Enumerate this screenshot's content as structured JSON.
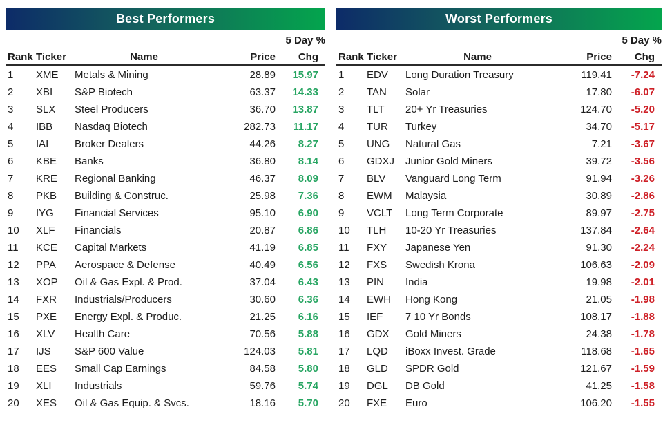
{
  "columns_display": {
    "rank": "Rank",
    "ticker": "Ticker",
    "name": "Name",
    "price": "Price",
    "chg_top": "5 Day %",
    "chg": "Chg"
  },
  "colors": {
    "header_gradient": [
      "#0d2b68",
      "#14635c",
      "#04a54d"
    ],
    "positive": "#27a562",
    "negative": "#ce2027",
    "text": "#1d1d1d",
    "rule": "#2b2b2b"
  },
  "chart_data": [
    {
      "type": "table",
      "title": "Best Performers",
      "columns": [
        "Rank",
        "Ticker",
        "Name",
        "Price",
        "5 Day % Chg"
      ],
      "rows": [
        [
          1,
          "XME",
          "Metals & Mining",
          "28.89",
          "15.97"
        ],
        [
          2,
          "XBI",
          "S&P Biotech",
          "63.37",
          "14.33"
        ],
        [
          3,
          "SLX",
          "Steel Producers",
          "36.70",
          "13.87"
        ],
        [
          4,
          "IBB",
          "Nasdaq Biotech",
          "282.73",
          "11.17"
        ],
        [
          5,
          "IAI",
          "Broker Dealers",
          "44.26",
          "8.27"
        ],
        [
          6,
          "KBE",
          "Banks",
          "36.80",
          "8.14"
        ],
        [
          7,
          "KRE",
          "Regional Banking",
          "46.37",
          "8.09"
        ],
        [
          8,
          "PKB",
          "Building & Construc.",
          "25.98",
          "7.36"
        ],
        [
          9,
          "IYG",
          "Financial Services",
          "95.10",
          "6.90"
        ],
        [
          10,
          "XLF",
          "Financials",
          "20.87",
          "6.86"
        ],
        [
          11,
          "KCE",
          "Capital Markets",
          "41.19",
          "6.85"
        ],
        [
          12,
          "PPA",
          "Aerospace & Defense",
          "40.49",
          "6.56"
        ],
        [
          13,
          "XOP",
          "Oil & Gas Expl. & Prod.",
          "37.04",
          "6.43"
        ],
        [
          14,
          "FXR",
          "Industrials/Producers",
          "30.60",
          "6.36"
        ],
        [
          15,
          "PXE",
          "Energy Expl. & Produc.",
          "21.25",
          "6.16"
        ],
        [
          16,
          "XLV",
          "Health Care",
          "70.56",
          "5.88"
        ],
        [
          17,
          "IJS",
          "S&P 600 Value",
          "124.03",
          "5.81"
        ],
        [
          18,
          "EES",
          "Small Cap Earnings",
          "84.58",
          "5.80"
        ],
        [
          19,
          "XLI",
          "Industrials",
          "59.76",
          "5.74"
        ],
        [
          20,
          "XES",
          "Oil & Gas Equip. & Svcs.",
          "18.16",
          "5.70"
        ]
      ]
    },
    {
      "type": "table",
      "title": "Worst Performers",
      "columns": [
        "Rank",
        "Ticker",
        "Name",
        "Price",
        "5 Day % Chg"
      ],
      "rows": [
        [
          1,
          "EDV",
          "Long Duration Treasury",
          "119.41",
          "-7.24"
        ],
        [
          2,
          "TAN",
          "Solar",
          "17.80",
          "-6.07"
        ],
        [
          3,
          "TLT",
          "20+ Yr Treasuries",
          "124.70",
          "-5.20"
        ],
        [
          4,
          "TUR",
          "Turkey",
          "34.70",
          "-5.17"
        ],
        [
          5,
          "UNG",
          "Natural Gas",
          "7.21",
          "-3.67"
        ],
        [
          6,
          "GDXJ",
          "Junior Gold Miners",
          "39.72",
          "-3.56"
        ],
        [
          7,
          "BLV",
          "Vanguard Long Term",
          "91.94",
          "-3.26"
        ],
        [
          8,
          "EWM",
          "Malaysia",
          "30.89",
          "-2.86"
        ],
        [
          9,
          "VCLT",
          "Long Term Corporate",
          "89.97",
          "-2.75"
        ],
        [
          10,
          "TLH",
          "10-20 Yr Treasuries",
          "137.84",
          "-2.64"
        ],
        [
          11,
          "FXY",
          "Japanese Yen",
          "91.30",
          "-2.24"
        ],
        [
          12,
          "FXS",
          "Swedish Krona",
          "106.63",
          "-2.09"
        ],
        [
          13,
          "PIN",
          "India",
          "19.98",
          "-2.01"
        ],
        [
          14,
          "EWH",
          "Hong Kong",
          "21.05",
          "-1.98"
        ],
        [
          15,
          "IEF",
          "7 10 Yr Bonds",
          "108.17",
          "-1.88"
        ],
        [
          16,
          "GDX",
          "Gold Miners",
          "24.38",
          "-1.78"
        ],
        [
          17,
          "LQD",
          "iBoxx Invest. Grade",
          "118.68",
          "-1.65"
        ],
        [
          18,
          "GLD",
          "SPDR Gold",
          "121.67",
          "-1.59"
        ],
        [
          19,
          "DGL",
          "DB Gold",
          "41.25",
          "-1.58"
        ],
        [
          20,
          "FXE",
          "Euro",
          "106.20",
          "-1.55"
        ]
      ]
    }
  ]
}
